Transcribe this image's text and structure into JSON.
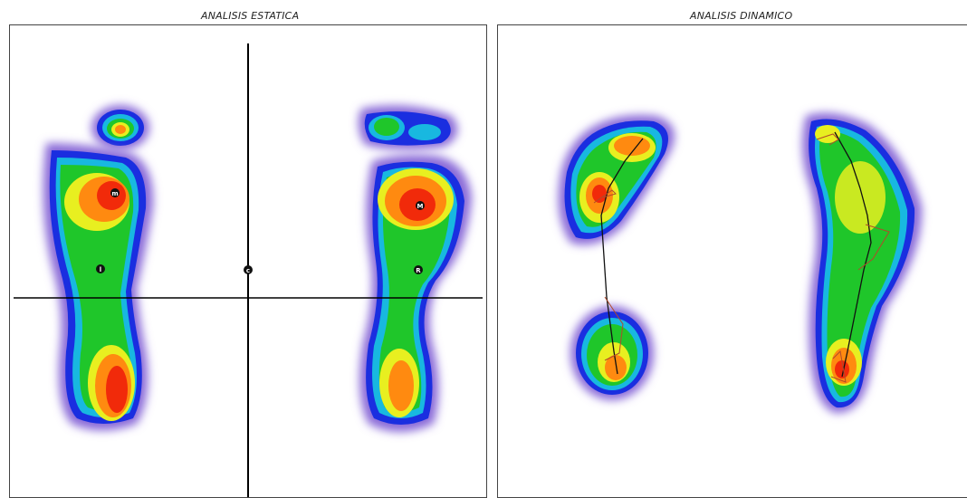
{
  "static_panel": {
    "title": "ANALISIS ESTATICA",
    "markers": [
      {
        "id": "left-forefoot",
        "label": "m"
      },
      {
        "id": "left-midfoot",
        "label": "l"
      },
      {
        "id": "center",
        "label": "c"
      },
      {
        "id": "right-forefoot",
        "label": "M"
      },
      {
        "id": "right-midfoot",
        "label": "R"
      }
    ]
  },
  "dynamic_panel": {
    "title": "ANALISIS DINAMICO"
  },
  "colors": {
    "heat_outer": "#6a40c8",
    "heat_blue": "#1a2ee0",
    "heat_cyan": "#18b8e0",
    "heat_green": "#1fc62a",
    "heat_yellow": "#e8ef20",
    "heat_orange": "#ff8a10",
    "heat_red": "#f12a0a"
  }
}
